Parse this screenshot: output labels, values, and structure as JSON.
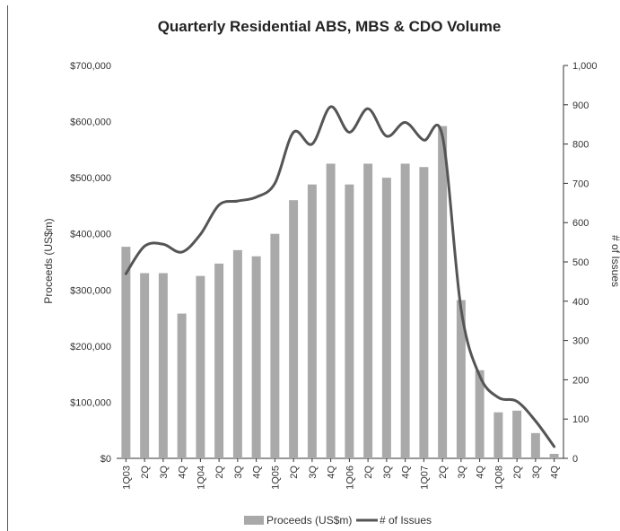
{
  "chart_data": {
    "type": "bar",
    "title": "Quarterly Residential ABS, MBS & CDO Volume",
    "ylabel": "Proceeds (US$m)",
    "y2label": "# of Issues",
    "ylim": [
      0,
      700000
    ],
    "y2lim": [
      0,
      1000
    ],
    "yticks": [
      "$0",
      "$100,000",
      "$200,000",
      "$300,000",
      "$400,000",
      "$500,000",
      "$600,000",
      "$700,000"
    ],
    "y2ticks": [
      "0",
      "100",
      "200",
      "300",
      "400",
      "500",
      "600",
      "700",
      "800",
      "900",
      "1,000"
    ],
    "categories": [
      "1Q03",
      "2Q",
      "3Q",
      "4Q",
      "1Q04",
      "2Q",
      "3Q",
      "4Q",
      "1Q05",
      "2Q",
      "3Q",
      "4Q",
      "1Q06",
      "2Q",
      "3Q",
      "4Q",
      "1Q07",
      "2Q",
      "3Q",
      "4Q",
      "1Q08",
      "2Q",
      "3Q",
      "4Q"
    ],
    "series": [
      {
        "name": "Proceeds (US$m)",
        "type": "bar",
        "axis": "left",
        "color": "#a9a9a9",
        "values": [
          377000,
          330000,
          330000,
          258000,
          325000,
          347000,
          371000,
          360000,
          400000,
          460000,
          488000,
          525000,
          488000,
          525000,
          500000,
          525000,
          519000,
          592000,
          282000,
          157000,
          82000,
          85000,
          45000,
          8000
        ]
      },
      {
        "name": "# of Issues",
        "type": "line",
        "axis": "right",
        "color": "#555555",
        "values": [
          470,
          540,
          545,
          525,
          570,
          645,
          655,
          665,
          700,
          830,
          800,
          895,
          830,
          890,
          820,
          855,
          810,
          820,
          380,
          210,
          155,
          145,
          95,
          30
        ]
      }
    ],
    "legend": "bottom",
    "grid": false
  }
}
